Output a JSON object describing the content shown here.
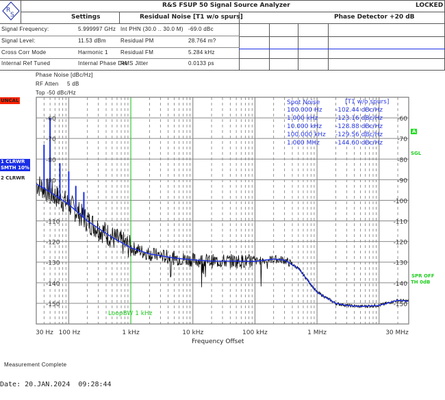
{
  "header": {
    "title": "R&S FSUP 50 Signal Source Analyzer",
    "status": "LOCKED",
    "logo": "R&S",
    "sections": {
      "settings": "Settings",
      "residual": "Residual Noise [T1 w/o spurs]",
      "phase_detector": "Phase Detector +20 dB"
    },
    "settings": [
      {
        "label": "Signal Frequency:",
        "value": "5.999997 GHz"
      },
      {
        "label": "Signal Level:",
        "value": "11.53 dBm"
      },
      {
        "label": "Cross Corr Mode",
        "value": "Harmonic 1"
      },
      {
        "label": "Internal Ref Tuned",
        "value": "Internal Phase Det"
      }
    ],
    "residual": [
      {
        "label": "Int PHN (30.0 .. 30.0 M)",
        "value": "-69.0 dBc"
      },
      {
        "label": "Residual PM",
        "value": "28.764 m?"
      },
      {
        "label": "Residual FM",
        "value": "5.284 kHz"
      },
      {
        "label": "RMS Jitter",
        "value": "0.0133 ps"
      }
    ]
  },
  "plot_info": {
    "unit": "Phase Noise [dBc/Hz]",
    "rf_atten_label": "RF Atten",
    "rf_atten_value": "5 dB",
    "top": "Top -50 dBc/Hz"
  },
  "badges": {
    "uncal": "UNCAL",
    "trace1a": "1 CLRWR",
    "trace1b": "SMTH 10%",
    "trace2": "2 CLRWR",
    "a": "A",
    "sgl": "SGL",
    "spr": "SPR OFF",
    "th": "TH 0dB",
    "loop_bw": "LoopBW 1 kHz"
  },
  "colors": {
    "trace1": "#1a2ee6",
    "trace2": "#000000",
    "grid": "#777777",
    "green": "#22cc22",
    "uncal": "#ff2200"
  },
  "spot_noise": {
    "title": "Spot Noise",
    "trace": "[T1 w/o spurs]",
    "rows": [
      {
        "f": "100.000 Hz",
        "v": "-102.44 dBc/Hz"
      },
      {
        "f": "1.000 kHz",
        "v": "-123.16 dBc/Hz"
      },
      {
        "f": "10.000 kHz",
        "v": "-128.88 dBc/Hz"
      },
      {
        "f": "100.000 kHz",
        "v": "-129.56 dBc/Hz"
      },
      {
        "f": "1.000 MHz",
        "v": "-144.60 dBc/Hz"
      }
    ]
  },
  "chart_data": {
    "type": "line",
    "xlabel": "Frequency Offset",
    "ylabel": "Phase Noise [dBc/Hz]",
    "xscale": "log",
    "xlim": [
      30,
      30000000
    ],
    "ylim": [
      -160,
      -50
    ],
    "x_ticks": [
      {
        "v": 30,
        "label": "30 Hz"
      },
      {
        "v": 100,
        "label": "100 Hz"
      },
      {
        "v": 1000,
        "label": "1 kHz"
      },
      {
        "v": 10000,
        "label": "10 kHz"
      },
      {
        "v": 100000,
        "label": "100 kHz"
      },
      {
        "v": 1000000,
        "label": "1 MHz"
      },
      {
        "v": 30000000,
        "label": "30 MHz"
      }
    ],
    "y_ticks": [
      -60,
      -70,
      -80,
      -90,
      -100,
      -110,
      -120,
      -130,
      -140,
      -150
    ],
    "series": [
      {
        "name": "1 CLRWR SMTH 10%",
        "x": [
          30,
          50,
          100,
          200,
          500,
          1000,
          2000,
          5000,
          10000,
          20000,
          50000,
          100000,
          200000,
          300000,
          500000,
          1000000,
          2000000,
          3000000,
          5000000,
          10000000,
          20000000,
          30000000
        ],
        "y": [
          -92,
          -96,
          -102,
          -110,
          -118,
          -123,
          -126,
          -128,
          -128.9,
          -129.5,
          -129.5,
          -129.6,
          -128.5,
          -129,
          -133,
          -144.6,
          -150,
          -151,
          -151.5,
          -151,
          -148.5,
          -149
        ]
      },
      {
        "name": "spurs",
        "x": [
          40,
          50,
          72,
          100,
          130,
          175
        ],
        "y": [
          -73,
          -60,
          -82,
          -86,
          -93,
          -96
        ]
      }
    ]
  },
  "footer": {
    "status": "Measurement Complete",
    "date": "Date: 20.JAN.2024  09:28:44"
  }
}
